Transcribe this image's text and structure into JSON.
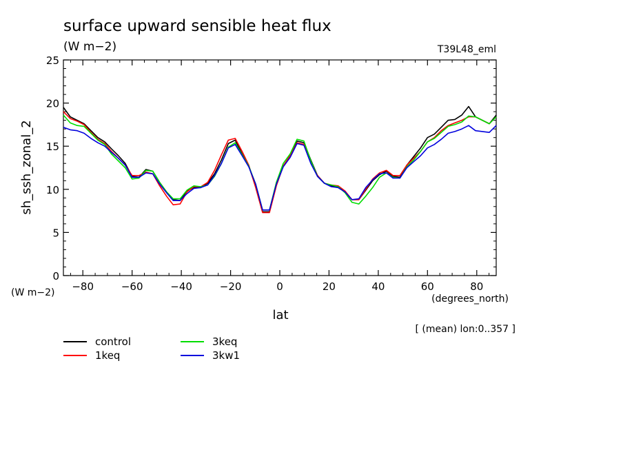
{
  "chart_data": {
    "type": "line",
    "title": "surface upward sensible heat flux",
    "units": "(W m−2)",
    "model_label": "T39L48_eml",
    "xlabel": "lat",
    "x_units": "(degrees_north)",
    "ylabel": "sh_ssh_zonal_2",
    "y_units": "(W m−2)",
    "annotation": "[ (mean) lon:0..357 ]",
    "xlim": [
      -87.9,
      87.9
    ],
    "ylim": [
      0,
      25
    ],
    "xticks": [
      -80,
      -60,
      -40,
      -20,
      0,
      20,
      40,
      60,
      80
    ],
    "xtick_labels": [
      "−80",
      "−60",
      "−40",
      "−20",
      "0",
      "20",
      "40",
      "60",
      "80"
    ],
    "yticks": [
      0,
      5,
      10,
      15,
      20,
      25
    ],
    "ytick_labels": [
      "0",
      "5",
      "10",
      "15",
      "20",
      "25"
    ],
    "grid": false,
    "legend_position": "bottom-left",
    "x": [
      -87.9,
      -85.1,
      -82.3,
      -79.5,
      -76.7,
      -73.9,
      -71.1,
      -68.4,
      -65.6,
      -62.8,
      -60.0,
      -57.2,
      -54.4,
      -51.6,
      -48.8,
      -46.0,
      -43.3,
      -40.5,
      -37.7,
      -34.9,
      -32.1,
      -29.3,
      -26.5,
      -23.7,
      -20.9,
      -18.1,
      -15.3,
      -12.6,
      -9.8,
      -7.0,
      -4.2,
      -1.4,
      1.4,
      4.2,
      7.0,
      9.8,
      12.6,
      15.3,
      18.1,
      20.9,
      23.7,
      26.5,
      29.3,
      32.1,
      34.9,
      37.7,
      40.5,
      43.3,
      46.0,
      48.8,
      51.6,
      54.4,
      57.2,
      60.0,
      62.8,
      65.6,
      68.4,
      71.1,
      73.9,
      76.7,
      79.5,
      82.3,
      85.1,
      87.9
    ],
    "series": [
      {
        "name": "control",
        "color": "#000000",
        "values": [
          19.5,
          18.4,
          18.0,
          17.6,
          16.8,
          16.0,
          15.5,
          14.7,
          13.9,
          13.0,
          11.5,
          11.4,
          12.3,
          12.1,
          10.8,
          9.7,
          8.8,
          8.7,
          9.8,
          10.2,
          10.2,
          10.7,
          11.8,
          13.4,
          15.3,
          15.7,
          14.1,
          12.7,
          10.3,
          7.4,
          7.4,
          10.5,
          12.7,
          13.9,
          15.6,
          15.4,
          13.4,
          11.6,
          10.7,
          10.4,
          10.2,
          9.7,
          8.8,
          8.8,
          9.9,
          11.0,
          11.7,
          12.1,
          11.5,
          11.4,
          12.8,
          13.8,
          14.8,
          16.0,
          16.4,
          17.2,
          18.0,
          18.1,
          18.6,
          19.6,
          18.4,
          18.0,
          17.6,
          18.6
        ]
      },
      {
        "name": "1keq",
        "color": "#ff0000",
        "values": [
          19.0,
          18.2,
          17.9,
          17.5,
          16.6,
          15.8,
          15.3,
          14.4,
          13.6,
          12.8,
          11.6,
          11.6,
          12.0,
          11.8,
          10.4,
          9.2,
          8.2,
          8.3,
          9.7,
          10.3,
          10.3,
          10.8,
          12.2,
          14.0,
          15.7,
          15.9,
          14.4,
          12.8,
          10.2,
          7.3,
          7.3,
          10.4,
          12.7,
          13.9,
          15.4,
          15.2,
          13.2,
          11.6,
          10.7,
          10.5,
          10.4,
          9.8,
          8.8,
          8.8,
          10.0,
          11.2,
          11.9,
          12.2,
          11.6,
          11.6,
          12.8,
          13.6,
          14.4,
          15.5,
          16.0,
          16.8,
          17.4,
          17.7,
          18.0,
          18.4,
          18.4,
          18.0,
          17.6,
          18.4
        ]
      },
      {
        "name": "3keq",
        "color": "#00dd00",
        "values": [
          18.6,
          17.7,
          17.4,
          17.3,
          16.5,
          15.7,
          15.2,
          14.1,
          13.3,
          12.5,
          11.2,
          11.3,
          12.2,
          12.1,
          10.8,
          9.7,
          8.9,
          8.9,
          9.9,
          10.4,
          10.3,
          10.5,
          11.5,
          13.0,
          14.9,
          15.4,
          14.0,
          12.7,
          10.6,
          7.6,
          7.6,
          10.8,
          13.0,
          14.1,
          15.8,
          15.6,
          13.3,
          11.5,
          10.7,
          10.5,
          10.3,
          9.6,
          8.5,
          8.3,
          9.2,
          10.2,
          11.4,
          11.9,
          11.4,
          11.3,
          12.6,
          13.4,
          14.4,
          15.5,
          15.9,
          16.6,
          17.3,
          17.5,
          17.8,
          18.5,
          18.4,
          18.0,
          17.6,
          18.4
        ]
      },
      {
        "name": "3kw1",
        "color": "#0000dd",
        "values": [
          17.2,
          16.9,
          16.8,
          16.5,
          15.9,
          15.4,
          15.0,
          14.3,
          13.6,
          12.8,
          11.4,
          11.4,
          11.9,
          11.8,
          10.6,
          9.6,
          8.7,
          8.7,
          9.5,
          10.1,
          10.2,
          10.5,
          11.6,
          13.0,
          14.8,
          15.2,
          13.9,
          12.6,
          10.6,
          7.6,
          7.6,
          10.6,
          12.6,
          13.7,
          15.3,
          15.1,
          13.0,
          11.5,
          10.7,
          10.3,
          10.2,
          9.7,
          8.8,
          8.9,
          10.2,
          11.1,
          11.8,
          11.9,
          11.3,
          11.3,
          12.5,
          13.2,
          13.9,
          14.8,
          15.2,
          15.8,
          16.5,
          16.7,
          17.0,
          17.4,
          16.8,
          16.7,
          16.6,
          17.4
        ]
      }
    ]
  }
}
